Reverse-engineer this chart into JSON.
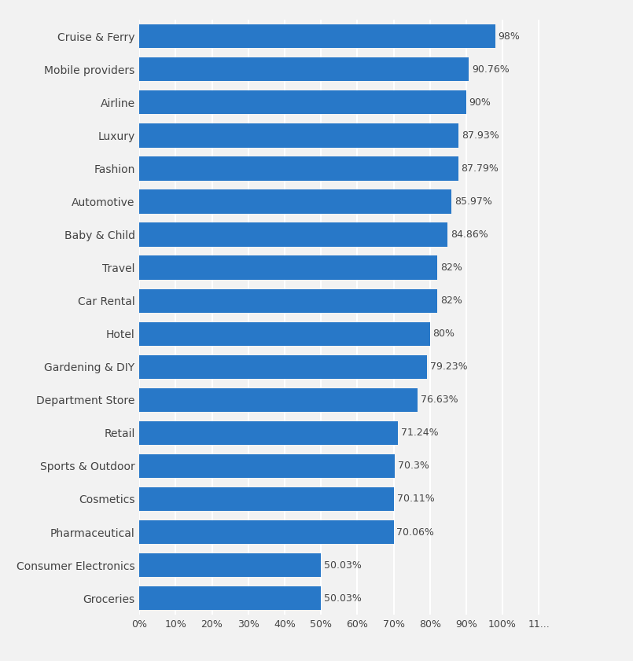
{
  "categories": [
    "Groceries",
    "Consumer Electronics",
    "Pharmaceutical",
    "Cosmetics",
    "Sports & Outdoor",
    "Retail",
    "Department Store",
    "Gardening & DIY",
    "Hotel",
    "Car Rental",
    "Travel",
    "Baby & Child",
    "Automotive",
    "Fashion",
    "Luxury",
    "Airline",
    "Mobile providers",
    "Cruise & Ferry"
  ],
  "values": [
    50.03,
    50.03,
    70.06,
    70.11,
    70.3,
    71.24,
    76.63,
    79.23,
    80,
    82,
    82,
    84.86,
    85.97,
    87.79,
    87.93,
    90,
    90.76,
    98
  ],
  "labels": [
    "50.03%",
    "50.03%",
    "70.06%",
    "70.11%",
    "70.3%",
    "71.24%",
    "76.63%",
    "79.23%",
    "80%",
    "82%",
    "82%",
    "84.86%",
    "85.97%",
    "87.79%",
    "87.93%",
    "90%",
    "90.76%",
    "98%"
  ],
  "bar_color": "#2878C8",
  "background_color": "#f2f2f2",
  "grid_color": "#ffffff",
  "text_color": "#444444",
  "bar_height": 0.72,
  "xlim": [
    0,
    115
  ],
  "xticks": [
    0,
    10,
    20,
    30,
    40,
    50,
    60,
    70,
    80,
    90,
    100,
    110
  ],
  "xtick_labels": [
    "0%",
    "10%",
    "20%",
    "30%",
    "40%",
    "50%",
    "60%",
    "70%",
    "80%",
    "90%",
    "100%",
    "11..."
  ],
  "label_fontsize": 9,
  "tick_fontsize": 9,
  "ytick_fontsize": 10
}
